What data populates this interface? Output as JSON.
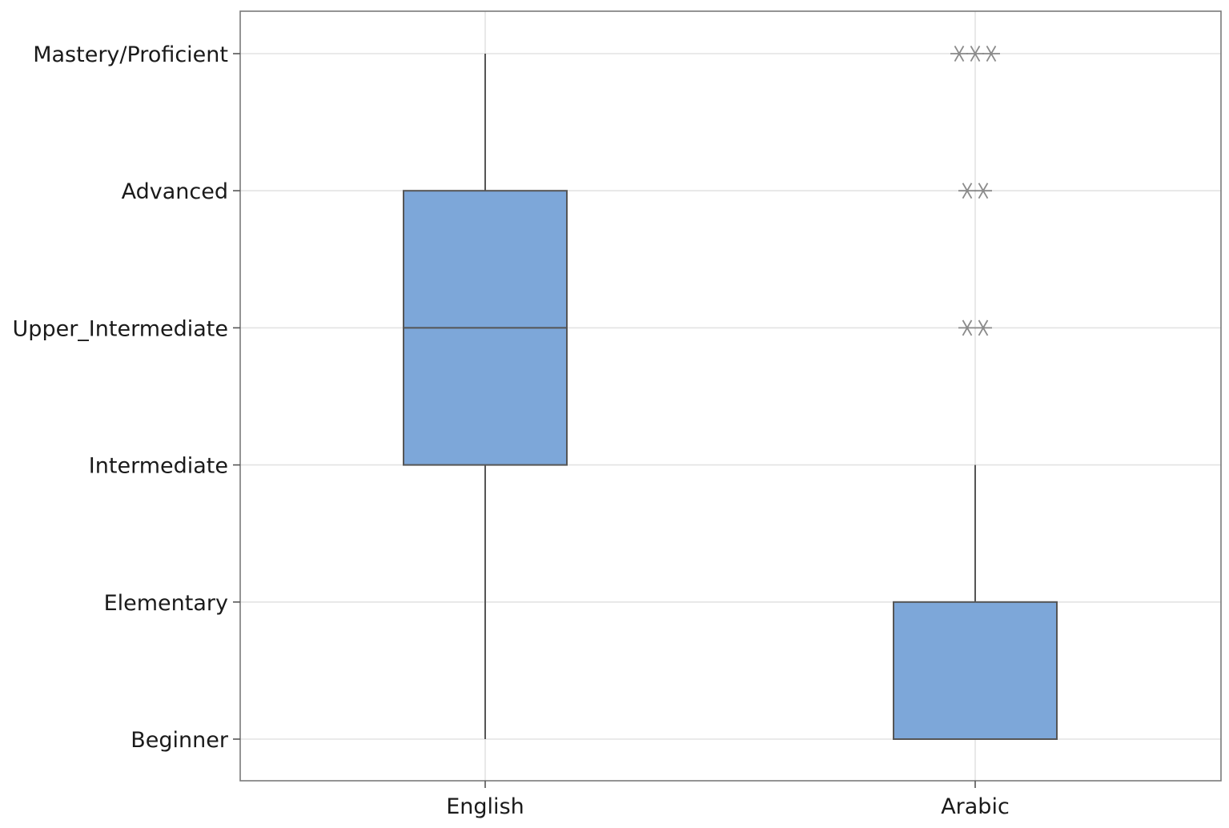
{
  "chart_data": {
    "type": "box",
    "title": "",
    "xlabel": "",
    "ylabel": "",
    "categories": [
      "English",
      "Arabic"
    ],
    "y_levels": [
      "Beginner",
      "Elementary",
      "Intermediate",
      "Upper_Intermediate",
      "Advanced",
      "Mastery/Proficient"
    ],
    "ylim": [
      1,
      6
    ],
    "grid": true,
    "box_color": "#7da7d9",
    "outline_color": "#555555",
    "outlier_color": "#8a8a8a",
    "series": [
      {
        "category": "English",
        "whisker_low": 1,
        "q1": 3,
        "median": 4,
        "q3": 5,
        "whisker_high": 6,
        "outliers": []
      },
      {
        "category": "Arabic",
        "whisker_low": 1,
        "q1": 1,
        "median": 1,
        "q3": 2,
        "whisker_high": 3,
        "outliers": [
          {
            "value": 6,
            "count": 3
          },
          {
            "value": 5,
            "count": 2
          },
          {
            "value": 4,
            "count": 2
          }
        ]
      }
    ]
  }
}
